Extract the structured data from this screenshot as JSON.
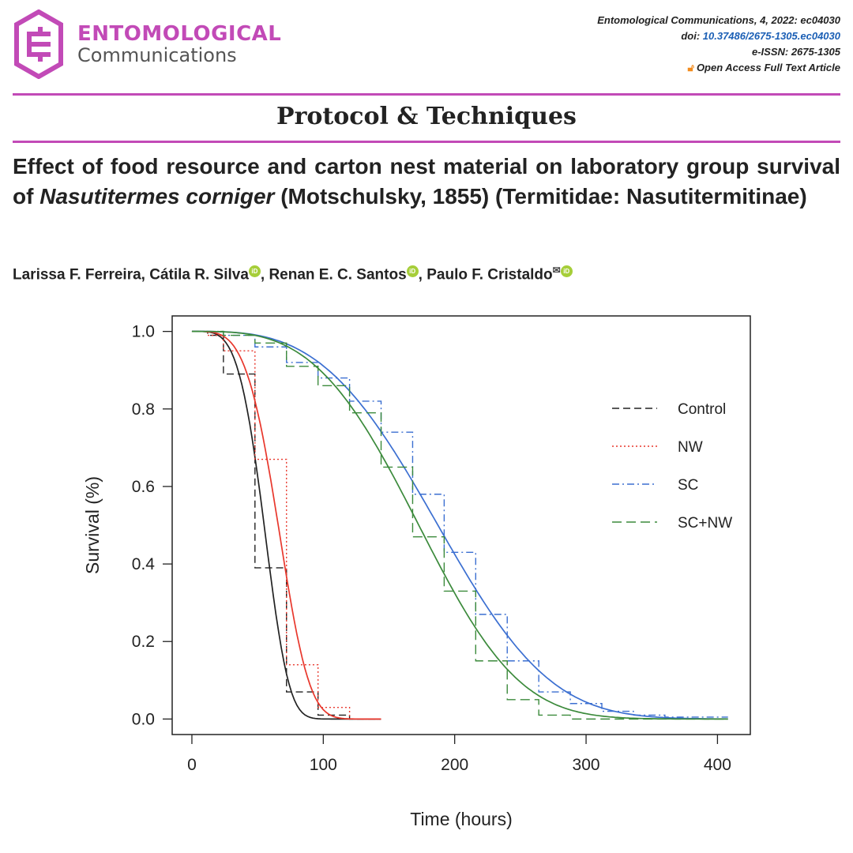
{
  "header": {
    "brand_line1": "ENTOMOLOGICAL",
    "brand_line2": "Communications",
    "journal_ref": "Entomological Communications, 4, 2022: ec04030",
    "doi_label": "doi: ",
    "doi_value": "10.37486/2675-1305.ec04030",
    "eissn": "e-ISSN: 2675-1305",
    "open_access": "Open Access Full Text Article",
    "colors": {
      "brand": "#c24ab7",
      "link": "#1b5fb5",
      "open_access": "#f28c1e",
      "orcid": "#a6ce39"
    }
  },
  "article": {
    "section": "Protocol & Techniques",
    "title_part1": "Effect of food resource and carton nest material on laboratory group survival of ",
    "title_species": "Nasutitermes corniger",
    "title_part2": " (Motschulsky, 1855) (Termitidae: Nasutitermitinae)",
    "authors": [
      {
        "name": "Larissa F. Ferreira",
        "orcid": false,
        "corresponding": false
      },
      {
        "name": "Cátila R. Silva",
        "orcid": true,
        "corresponding": false
      },
      {
        "name": "Renan E. C. Santos",
        "orcid": true,
        "corresponding": false
      },
      {
        "name": "Paulo F. Cristaldo",
        "orcid": true,
        "corresponding": true
      }
    ],
    "orcid_badge": "iD"
  },
  "chart_data": {
    "type": "line",
    "title": "",
    "xlabel": "Time (hours)",
    "ylabel": "Survival (%)",
    "xlim": [
      -15,
      425
    ],
    "ylim": [
      -0.04,
      1.04
    ],
    "xticks": [
      0,
      100,
      200,
      300,
      400
    ],
    "yticks": [
      0.0,
      0.2,
      0.4,
      0.6,
      0.8,
      1.0
    ],
    "grid": false,
    "legend_position": "right",
    "series": [
      {
        "name": "Control",
        "color": "#222222",
        "dash": "9,5",
        "step": [
          [
            0,
            1.0
          ],
          [
            12,
            0.99
          ],
          [
            24,
            0.89
          ],
          [
            48,
            0.39
          ],
          [
            72,
            0.07
          ],
          [
            96,
            0.01
          ],
          [
            120,
            0.0
          ],
          [
            144,
            0.0
          ]
        ],
        "fit": {
          "scale": 60,
          "shape": 4.2
        }
      },
      {
        "name": "NW",
        "color": "#e8372c",
        "dash": "2,3",
        "step": [
          [
            0,
            1.0
          ],
          [
            12,
            0.99
          ],
          [
            24,
            0.95
          ],
          [
            48,
            0.67
          ],
          [
            72,
            0.14
          ],
          [
            96,
            0.03
          ],
          [
            120,
            0.0
          ],
          [
            144,
            0.0
          ]
        ],
        "fit": {
          "scale": 72,
          "shape": 4.0
        }
      },
      {
        "name": "SC",
        "color": "#3b6fd1",
        "dash": "9,4,2,4",
        "step": [
          [
            0,
            1.0
          ],
          [
            24,
            0.99
          ],
          [
            48,
            0.96
          ],
          [
            72,
            0.92
          ],
          [
            96,
            0.88
          ],
          [
            120,
            0.82
          ],
          [
            144,
            0.74
          ],
          [
            168,
            0.58
          ],
          [
            192,
            0.43
          ],
          [
            216,
            0.27
          ],
          [
            240,
            0.15
          ],
          [
            264,
            0.07
          ],
          [
            288,
            0.04
          ],
          [
            312,
            0.02
          ],
          [
            336,
            0.01
          ],
          [
            360,
            0.005
          ],
          [
            408,
            0.005
          ]
        ],
        "fit": {
          "scale": 210,
          "shape": 3.2
        }
      },
      {
        "name": "SC+NW",
        "color": "#3b8a3b",
        "dash": "12,6",
        "step": [
          [
            0,
            1.0
          ],
          [
            24,
            0.99
          ],
          [
            48,
            0.97
          ],
          [
            72,
            0.91
          ],
          [
            96,
            0.86
          ],
          [
            120,
            0.79
          ],
          [
            144,
            0.65
          ],
          [
            168,
            0.47
          ],
          [
            192,
            0.33
          ],
          [
            216,
            0.15
          ],
          [
            240,
            0.05
          ],
          [
            264,
            0.01
          ],
          [
            288,
            0.0
          ],
          [
            312,
            0.0
          ],
          [
            408,
            0.0
          ]
        ],
        "fit": {
          "scale": 193,
          "shape": 3.3
        }
      }
    ]
  }
}
